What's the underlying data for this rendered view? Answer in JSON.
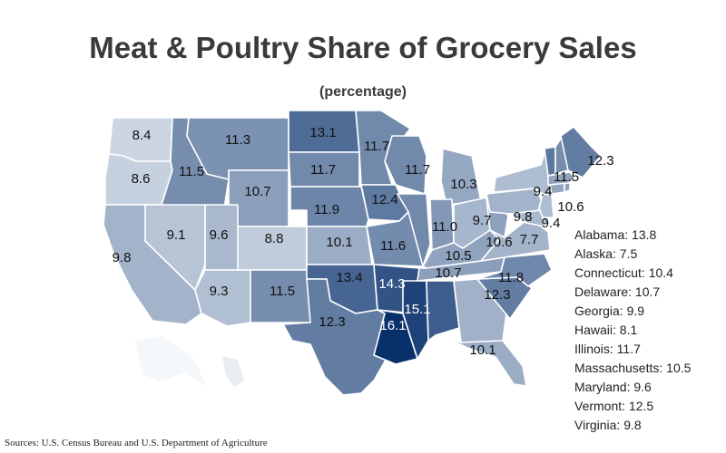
{
  "title": "Meat & Poultry Share of Grocery Sales",
  "subtitle": "(percentage)",
  "source": "Sources: U.S. Census Bureau and U.S. Department of Agriculture",
  "color_scale": {
    "low": "#eef3f8",
    "high": "#08306b",
    "min": 7.5,
    "max": 16.1
  },
  "chart_data": {
    "type": "choropleth",
    "title": "Meat & Poultry Share of Grocery Sales",
    "subtitle": "(percentage)",
    "states": [
      {
        "id": "WA",
        "value": 8.4
      },
      {
        "id": "OR",
        "value": 8.6
      },
      {
        "id": "CA",
        "value": 9.8
      },
      {
        "id": "ID",
        "value": 11.5
      },
      {
        "id": "NV",
        "value": 9.1
      },
      {
        "id": "MT",
        "value": 11.3
      },
      {
        "id": "WY",
        "value": 10.7
      },
      {
        "id": "UT",
        "value": 9.6
      },
      {
        "id": "AZ",
        "value": 9.3
      },
      {
        "id": "CO",
        "value": 8.8
      },
      {
        "id": "NM",
        "value": 11.5
      },
      {
        "id": "ND",
        "value": 13.1
      },
      {
        "id": "SD",
        "value": 11.7
      },
      {
        "id": "NE",
        "value": 11.9
      },
      {
        "id": "KS",
        "value": 10.1
      },
      {
        "id": "OK",
        "value": 13.4
      },
      {
        "id": "TX",
        "value": 12.3
      },
      {
        "id": "MN",
        "value": 11.7
      },
      {
        "id": "IA",
        "value": 12.4
      },
      {
        "id": "MO",
        "value": 11.6
      },
      {
        "id": "AR",
        "value": 14.3
      },
      {
        "id": "LA",
        "value": 16.1
      },
      {
        "id": "WI",
        "value": 11.7
      },
      {
        "id": "IL",
        "value": 11.7
      },
      {
        "id": "MI",
        "value": 10.3
      },
      {
        "id": "IN",
        "value": 11.0
      },
      {
        "id": "OH",
        "value": 9.7
      },
      {
        "id": "KY",
        "value": 10.5
      },
      {
        "id": "TN",
        "value": 10.7
      },
      {
        "id": "MS",
        "value": 15.1
      },
      {
        "id": "AL",
        "value": 13.8
      },
      {
        "id": "GA",
        "value": 9.9
      },
      {
        "id": "FL",
        "value": 10.1
      },
      {
        "id": "SC",
        "value": 12.3
      },
      {
        "id": "NC",
        "value": 11.8
      },
      {
        "id": "VA",
        "value": 9.8
      },
      {
        "id": "WV",
        "value": 10.6
      },
      {
        "id": "MD",
        "value": 9.6
      },
      {
        "id": "DE",
        "value": 10.7
      },
      {
        "id": "PA",
        "value": 9.8
      },
      {
        "id": "NJ",
        "value": 9.4
      },
      {
        "id": "NY",
        "value": 9.4
      },
      {
        "id": "CT",
        "value": 10.4
      },
      {
        "id": "RI",
        "value": 10.6
      },
      {
        "id": "MA",
        "value": 10.5
      },
      {
        "id": "VT",
        "value": 12.5
      },
      {
        "id": "NH",
        "value": 11.5
      },
      {
        "id": "ME",
        "value": 12.3
      },
      {
        "id": "AK",
        "value": 7.5
      },
      {
        "id": "HI",
        "value": 8.1
      }
    ],
    "map_labels": [
      {
        "id": "WA",
        "text": "8.4"
      },
      {
        "id": "OR",
        "text": "8.6"
      },
      {
        "id": "CA",
        "text": "9.8"
      },
      {
        "id": "ID",
        "text": "11.5"
      },
      {
        "id": "NV",
        "text": "9.1"
      },
      {
        "id": "MT",
        "text": "11.3"
      },
      {
        "id": "WY",
        "text": "10.7"
      },
      {
        "id": "UT",
        "text": "9.6"
      },
      {
        "id": "AZ",
        "text": "9.3"
      },
      {
        "id": "CO",
        "text": "8.8"
      },
      {
        "id": "NM",
        "text": "11.5"
      },
      {
        "id": "ND",
        "text": "13.1"
      },
      {
        "id": "SD",
        "text": "11.7"
      },
      {
        "id": "NE",
        "text": "11.9"
      },
      {
        "id": "KS",
        "text": "10.1"
      },
      {
        "id": "OK",
        "text": "13.4"
      },
      {
        "id": "TX",
        "text": "12.3"
      },
      {
        "id": "MN",
        "text": "11.7"
      },
      {
        "id": "IA",
        "text": "12.4"
      },
      {
        "id": "MO",
        "text": "11.6"
      },
      {
        "id": "AR",
        "text": "14.3"
      },
      {
        "id": "LA",
        "text": "16.1"
      },
      {
        "id": "WI",
        "text": "11.7"
      },
      {
        "id": "MI",
        "text": "10.3"
      },
      {
        "id": "IN",
        "text": "11.0"
      },
      {
        "id": "OH",
        "text": "9.7"
      },
      {
        "id": "KY",
        "text": "10.5"
      },
      {
        "id": "TN",
        "text": "10.7"
      },
      {
        "id": "MS",
        "text": "15.1"
      },
      {
        "id": "FL",
        "text": "10.1"
      },
      {
        "id": "SC",
        "text": "12.3"
      },
      {
        "id": "NC",
        "text": "11.8"
      },
      {
        "id": "WV",
        "text": "10.6"
      },
      {
        "id": "VA_MD",
        "text": "7.7"
      },
      {
        "id": "PA",
        "text": "9.8"
      },
      {
        "id": "NJ",
        "text": "9.4"
      },
      {
        "id": "NY",
        "text": "9.4"
      },
      {
        "id": "NH",
        "text": "11.5"
      },
      {
        "id": "ME",
        "text": "12.3"
      },
      {
        "id": "RI",
        "text": "10.6"
      }
    ],
    "side_list": [
      "Alabama: 13.8",
      "Alaska: 7.5",
      "Connecticut: 10.4",
      "Delaware: 10.7",
      "Georgia: 9.9",
      "Hawaii: 8.1",
      "Illinois: 11.7",
      "Massachusetts: 10.5",
      "Maryland: 9.6",
      "Vermont: 12.5",
      "Virginia: 9.8"
    ]
  }
}
